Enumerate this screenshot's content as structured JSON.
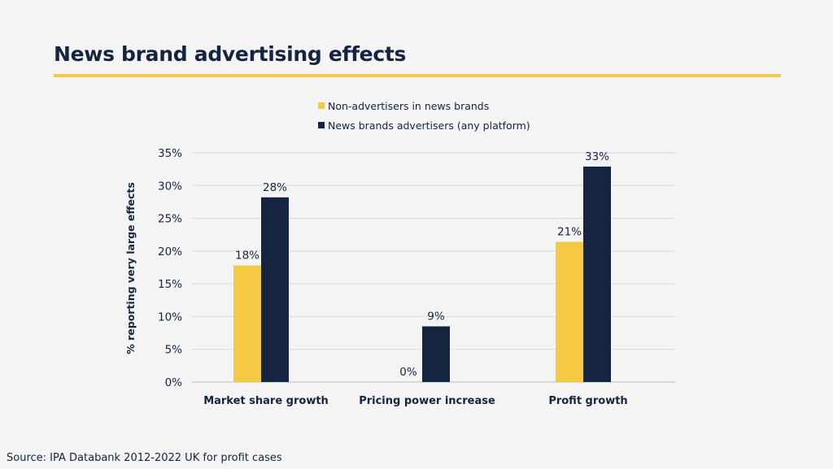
{
  "header": {
    "title": "News brand advertising effects"
  },
  "footer": {
    "source": "Source: IPA Databank 2012-2022 UK for profit cases"
  },
  "colors": {
    "accent": "#f6c945",
    "navy": "#15253f",
    "grid": "#d9d9d9"
  },
  "chart_data": {
    "type": "bar",
    "title": "News brand advertising effects",
    "xlabel": "",
    "ylabel": "% reporting very large effects",
    "categories": [
      "Market share growth",
      "Pricing power increase",
      "Profit growth"
    ],
    "series": [
      {
        "name": "Non-advertisers in news brands",
        "color": "#f6c945",
        "values": [
          18,
          0,
          21
        ],
        "labels": [
          "18%",
          "0%",
          "21%"
        ]
      },
      {
        "name": "News brands advertisers (any platform)",
        "color": "#15253f",
        "values": [
          28,
          9,
          33
        ],
        "labels": [
          "28%",
          "9%",
          "33%"
        ]
      }
    ],
    "bar_heights": [
      [
        17.8,
        0,
        21.4
      ],
      [
        28.2,
        8.5,
        32.9
      ]
    ],
    "ylim": [
      0,
      35
    ],
    "yticks": [
      0,
      5,
      10,
      15,
      20,
      25,
      30,
      35
    ],
    "ytick_labels": [
      "0%",
      "5%",
      "10%",
      "15%",
      "20%",
      "25%",
      "30%",
      "35%"
    ],
    "grid": true,
    "legend_position": "top"
  }
}
